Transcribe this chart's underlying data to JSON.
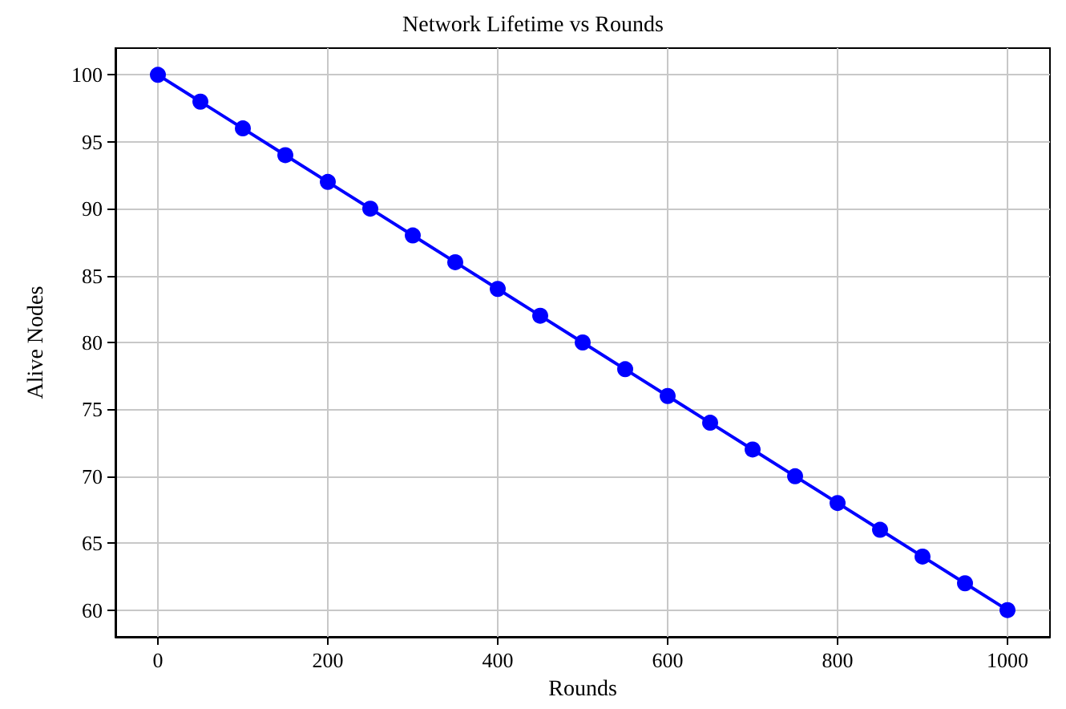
{
  "chart_data": {
    "type": "line",
    "title": "Network Lifetime vs Rounds",
    "xlabel": "Rounds",
    "ylabel": "Alive Nodes",
    "x": [
      0,
      50,
      100,
      150,
      200,
      250,
      300,
      350,
      400,
      450,
      500,
      550,
      600,
      650,
      700,
      750,
      800,
      850,
      900,
      950,
      1000
    ],
    "series": [
      {
        "color": "#0000ff",
        "values": [
          100,
          98,
          96,
          94,
          92,
          90,
          88,
          86,
          84,
          82,
          80,
          78,
          76,
          74,
          72,
          70,
          68,
          66,
          64,
          62,
          60
        ]
      }
    ],
    "xlim": [
      -50,
      1050
    ],
    "xticks": [
      0,
      200,
      400,
      600,
      800,
      1000
    ],
    "ylim": [
      58,
      102
    ],
    "yticks": [
      60,
      65,
      70,
      75,
      80,
      85,
      90,
      95,
      100
    ],
    "grid": true,
    "marker": "circle",
    "line_style": "solid"
  }
}
